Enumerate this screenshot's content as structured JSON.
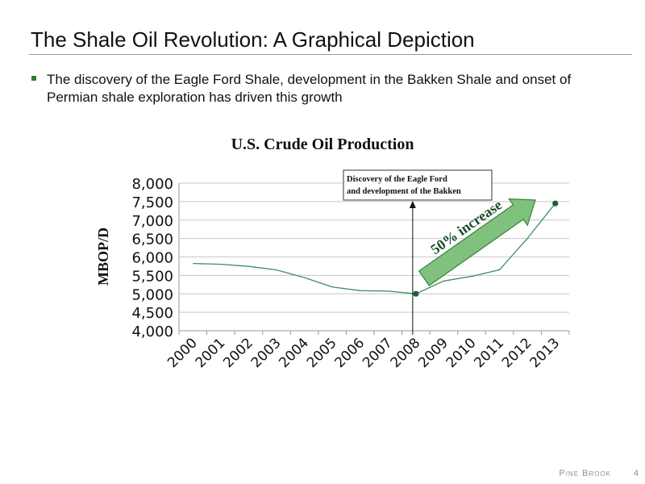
{
  "slide": {
    "title": "The Shale Oil Revolution: A Graphical Depiction",
    "bullet": "The discovery of the Eagle Ford Shale, development in the Bakken Shale and onset of Permian shale exploration has driven this growth",
    "footer_brand": "Pine Brook",
    "page_number": "4"
  },
  "colors": {
    "accent": "#2e7d32",
    "line": "#3a8f5a",
    "arrow_fill": "#7ec27e",
    "grid": "#c8c8c8"
  },
  "chart_data": {
    "type": "line",
    "title": "U.S. Crude Oil Production",
    "ylabel": "MBOP/D",
    "xlabel": "",
    "categories": [
      "2000",
      "2001",
      "2002",
      "2003",
      "2004",
      "2005",
      "2006",
      "2007",
      "2008",
      "2009",
      "2010",
      "2011",
      "2012",
      "2013"
    ],
    "values": [
      5822,
      5801,
      5744,
      5649,
      5441,
      5184,
      5086,
      5074,
      5001,
      5349,
      5473,
      5652,
      6500,
      7450
    ],
    "ylim": [
      4000,
      8000
    ],
    "yticks": [
      "4,000",
      "4,500",
      "5,000",
      "5,500",
      "6,000",
      "6,500",
      "7,000",
      "7,500",
      "8,000"
    ],
    "highlight_points": [
      "2008",
      "2013"
    ],
    "grid": true,
    "annotation_box": "Discovery of the Eagle Ford and development of the Bakken",
    "annotation_line_at": "2008",
    "arrow_label": "50% increase"
  }
}
